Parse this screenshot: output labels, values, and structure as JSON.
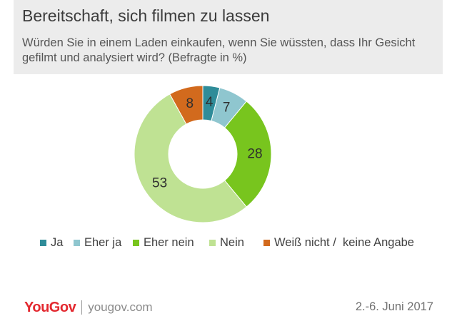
{
  "header": {
    "title": "Bereitschaft, sich filmen zu lassen",
    "subtitle": "Würden Sie in einem Laden einkaufen, wenn Sie wüssten, dass Ihr Gesicht gefilmt und analysiert wird? (Befragte in %)"
  },
  "chart_data": {
    "type": "pie",
    "variant": "donut",
    "title": "Bereitschaft, sich filmen zu lassen",
    "unit": "%",
    "legend_position": "bottom",
    "categories": [
      "Ja",
      "Eher ja",
      "Eher nein",
      "Nein",
      "Weiß nicht /  keine Angabe"
    ],
    "values": [
      4,
      7,
      28,
      53,
      8
    ],
    "colors": [
      "#2f8c99",
      "#8fc6cf",
      "#78c51e",
      "#bfe293",
      "#d26a1d"
    ]
  },
  "footer": {
    "logo_text": "YouGov",
    "logo_url": "yougov.com",
    "date": "2.-6. Juni 2017"
  }
}
